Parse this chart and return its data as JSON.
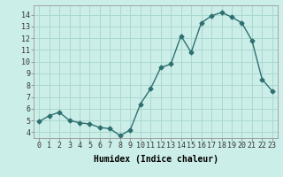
{
  "x": [
    0,
    1,
    2,
    3,
    4,
    5,
    6,
    7,
    8,
    9,
    10,
    11,
    12,
    13,
    14,
    15,
    16,
    17,
    18,
    19,
    20,
    21,
    22,
    23
  ],
  "y": [
    4.9,
    5.4,
    5.7,
    5.0,
    4.8,
    4.7,
    4.4,
    4.3,
    3.7,
    4.2,
    6.4,
    7.7,
    9.5,
    9.8,
    12.2,
    10.8,
    13.3,
    13.9,
    14.2,
    13.8,
    13.3,
    11.8,
    8.5,
    7.5
  ],
  "line_color": "#2e7070",
  "bg_color": "#cceee8",
  "grid_color": "#aad8d0",
  "xlabel": "Humidex (Indice chaleur)",
  "ylim": [
    3.5,
    14.8
  ],
  "xlim": [
    -0.5,
    23.5
  ],
  "yticks": [
    4,
    5,
    6,
    7,
    8,
    9,
    10,
    11,
    12,
    13,
    14
  ],
  "xticks": [
    0,
    1,
    2,
    3,
    4,
    5,
    6,
    7,
    8,
    9,
    10,
    11,
    12,
    13,
    14,
    15,
    16,
    17,
    18,
    19,
    20,
    21,
    22,
    23
  ],
  "marker": "D",
  "marker_size": 2.5,
  "line_width": 1.0,
  "tick_fontsize": 6.0,
  "xlabel_fontsize": 7.0
}
